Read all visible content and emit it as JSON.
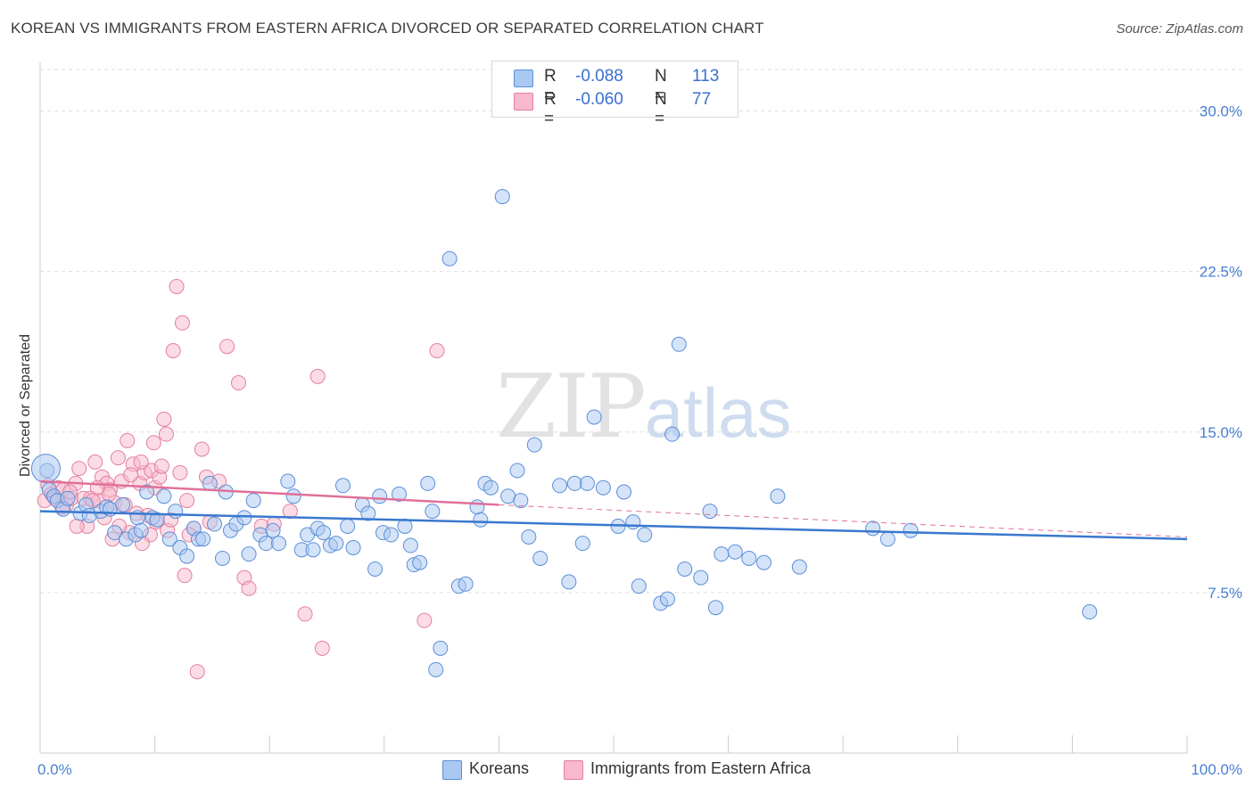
{
  "header": {
    "title": "KOREAN VS IMMIGRANTS FROM EASTERN AFRICA DIVORCED OR SEPARATED CORRELATION CHART",
    "source": "Source: ZipAtlas.com"
  },
  "watermark": {
    "zip": "ZIP",
    "atlas": "atlas"
  },
  "legend": {
    "rows": [
      {
        "r_label": "R =",
        "r_value": "-0.088",
        "n_label": "N =",
        "n_value": "113",
        "color": "#a9c8f2"
      },
      {
        "r_label": "R =",
        "r_value": "-0.060",
        "n_label": "N =",
        "n_value": "77",
        "color": "#f7b9cc"
      }
    ]
  },
  "bottom_legend": {
    "koreans": "Koreans",
    "eastern_africa": "Immigrants from Eastern Africa"
  },
  "colors": {
    "blue_fill": "#a9c8f2",
    "blue_stroke": "#5b8fd8",
    "blue_line": "#3a78cf",
    "pink_fill": "#f7b9cc",
    "pink_stroke": "#e47fa0",
    "pink_line": "#e0709a"
  },
  "chart_data": {
    "type": "scatter",
    "title": "KOREAN VS IMMIGRANTS FROM EASTERN AFRICA DIVORCED OR SEPARATED CORRELATION CHART",
    "ylabel": "Divorced or Separated",
    "xlabel": "",
    "xlim": [
      0,
      100
    ],
    "ylim": [
      0,
      31.5
    ],
    "x_tick_labels": [
      "0.0%",
      "100.0%"
    ],
    "y_ticks": [
      7.5,
      15.0,
      22.5,
      30.0
    ],
    "y_tick_labels": [
      "7.5%",
      "15.0%",
      "22.5%",
      "30.0%"
    ],
    "grid": "horizontal dashed",
    "series": [
      {
        "name": "Koreans",
        "R": -0.088,
        "N": 113,
        "trend": {
          "x": [
            0,
            100
          ],
          "y": [
            11.3,
            10.0
          ]
        },
        "points": [
          [
            0.6,
            13.2
          ],
          [
            0.8,
            12.3
          ],
          [
            1.2,
            12.0
          ],
          [
            1.5,
            11.8
          ],
          [
            2.0,
            11.4
          ],
          [
            2.4,
            11.9
          ],
          [
            3.5,
            11.2
          ],
          [
            4.0,
            11.6
          ],
          [
            4.3,
            11.1
          ],
          [
            5.3,
            11.3
          ],
          [
            5.8,
            11.5
          ],
          [
            6.1,
            11.4
          ],
          [
            6.5,
            10.3
          ],
          [
            7.2,
            11.6
          ],
          [
            7.5,
            10.0
          ],
          [
            8.3,
            10.2
          ],
          [
            8.5,
            11.0
          ],
          [
            8.8,
            10.4
          ],
          [
            9.3,
            12.2
          ],
          [
            9.8,
            11.0
          ],
          [
            10.2,
            10.9
          ],
          [
            10.8,
            12.0
          ],
          [
            11.3,
            10.0
          ],
          [
            11.8,
            11.3
          ],
          [
            12.2,
            9.6
          ],
          [
            12.8,
            9.2
          ],
          [
            13.4,
            10.5
          ],
          [
            13.8,
            10.0
          ],
          [
            14.2,
            10.0
          ],
          [
            14.8,
            12.6
          ],
          [
            15.2,
            10.7
          ],
          [
            15.9,
            9.1
          ],
          [
            16.2,
            12.2
          ],
          [
            16.6,
            10.4
          ],
          [
            17.1,
            10.7
          ],
          [
            17.8,
            11.0
          ],
          [
            18.2,
            9.3
          ],
          [
            18.6,
            11.8
          ],
          [
            19.2,
            10.2
          ],
          [
            19.7,
            9.8
          ],
          [
            20.3,
            10.4
          ],
          [
            20.8,
            9.8
          ],
          [
            21.6,
            12.7
          ],
          [
            22.1,
            12.0
          ],
          [
            22.8,
            9.5
          ],
          [
            23.3,
            10.2
          ],
          [
            23.8,
            9.5
          ],
          [
            24.2,
            10.5
          ],
          [
            24.7,
            10.3
          ],
          [
            25.3,
            9.7
          ],
          [
            25.8,
            9.8
          ],
          [
            26.4,
            12.5
          ],
          [
            26.8,
            10.6
          ],
          [
            27.3,
            9.6
          ],
          [
            28.1,
            11.6
          ],
          [
            28.6,
            11.2
          ],
          [
            29.2,
            8.6
          ],
          [
            29.6,
            12.0
          ],
          [
            29.9,
            10.3
          ],
          [
            30.6,
            10.2
          ],
          [
            31.3,
            12.1
          ],
          [
            31.8,
            10.6
          ],
          [
            32.3,
            9.7
          ],
          [
            32.6,
            8.8
          ],
          [
            33.1,
            8.9
          ],
          [
            33.8,
            12.6
          ],
          [
            34.2,
            11.3
          ],
          [
            34.5,
            3.9
          ],
          [
            34.9,
            4.9
          ],
          [
            35.7,
            23.1
          ],
          [
            36.5,
            7.8
          ],
          [
            37.1,
            7.9
          ],
          [
            38.1,
            11.5
          ],
          [
            38.4,
            10.9
          ],
          [
            38.8,
            12.6
          ],
          [
            39.3,
            12.4
          ],
          [
            40.3,
            26.0
          ],
          [
            40.8,
            12.0
          ],
          [
            41.6,
            13.2
          ],
          [
            41.9,
            11.8
          ],
          [
            42.6,
            10.1
          ],
          [
            43.1,
            14.4
          ],
          [
            43.6,
            9.1
          ],
          [
            45.3,
            12.5
          ],
          [
            46.1,
            8.0
          ],
          [
            46.6,
            12.6
          ],
          [
            47.3,
            9.8
          ],
          [
            47.7,
            12.6
          ],
          [
            48.3,
            15.7
          ],
          [
            49.1,
            12.4
          ],
          [
            50.4,
            10.6
          ],
          [
            50.9,
            12.2
          ],
          [
            51.7,
            10.8
          ],
          [
            52.2,
            7.8
          ],
          [
            52.7,
            10.2
          ],
          [
            54.1,
            7.0
          ],
          [
            54.7,
            7.2
          ],
          [
            55.1,
            14.9
          ],
          [
            55.7,
            19.1
          ],
          [
            56.2,
            8.6
          ],
          [
            57.6,
            8.2
          ],
          [
            58.4,
            11.3
          ],
          [
            58.9,
            6.8
          ],
          [
            59.4,
            9.3
          ],
          [
            60.6,
            9.4
          ],
          [
            61.8,
            9.1
          ],
          [
            63.1,
            8.9
          ],
          [
            64.3,
            12.0
          ],
          [
            66.2,
            8.7
          ],
          [
            72.6,
            10.5
          ],
          [
            73.9,
            10.0
          ],
          [
            75.9,
            10.4
          ],
          [
            91.5,
            6.6
          ]
        ]
      },
      {
        "name": "Immigrants from Eastern Africa",
        "R": -0.06,
        "N": 77,
        "trend": {
          "x": [
            0,
            40
          ],
          "y": [
            12.7,
            11.6
          ]
        },
        "trend_extension": {
          "x": [
            40,
            100
          ],
          "y": [
            11.6,
            10.1
          ]
        },
        "points": [
          [
            0.4,
            11.8
          ],
          [
            0.7,
            12.5
          ],
          [
            1.0,
            12.1
          ],
          [
            1.3,
            11.9
          ],
          [
            1.6,
            12.4
          ],
          [
            2.0,
            12.3
          ],
          [
            2.3,
            11.6
          ],
          [
            2.7,
            11.9
          ],
          [
            3.1,
            12.6
          ],
          [
            3.4,
            13.3
          ],
          [
            3.8,
            11.9
          ],
          [
            4.1,
            10.6
          ],
          [
            4.4,
            11.9
          ],
          [
            4.8,
            13.6
          ],
          [
            5.1,
            11.8
          ],
          [
            5.4,
            12.9
          ],
          [
            5.8,
            12.6
          ],
          [
            6.1,
            12.3
          ],
          [
            6.5,
            11.7
          ],
          [
            6.8,
            13.8
          ],
          [
            7.1,
            12.7
          ],
          [
            7.4,
            11.6
          ],
          [
            7.8,
            10.3
          ],
          [
            8.1,
            13.5
          ],
          [
            8.4,
            11.2
          ],
          [
            8.7,
            12.6
          ],
          [
            9.1,
            13.1
          ],
          [
            9.4,
            11.1
          ],
          [
            9.7,
            13.2
          ],
          [
            10.0,
            12.4
          ],
          [
            10.4,
            12.9
          ],
          [
            10.8,
            15.6
          ],
          [
            11.1,
            10.4
          ],
          [
            11.6,
            18.8
          ],
          [
            11.9,
            21.8
          ],
          [
            12.4,
            20.1
          ],
          [
            12.8,
            11.8
          ],
          [
            13.4,
            10.5
          ],
          [
            14.1,
            14.2
          ],
          [
            14.8,
            10.8
          ],
          [
            15.6,
            12.7
          ],
          [
            16.3,
            19.0
          ],
          [
            17.3,
            17.3
          ],
          [
            17.8,
            8.2
          ],
          [
            18.2,
            7.7
          ],
          [
            19.3,
            10.6
          ],
          [
            20.4,
            10.7
          ],
          [
            21.8,
            11.3
          ],
          [
            23.1,
            6.5
          ],
          [
            24.2,
            17.6
          ],
          [
            24.6,
            4.9
          ],
          [
            33.5,
            6.2
          ],
          [
            34.6,
            18.8
          ],
          [
            5.6,
            11.0
          ],
          [
            6.0,
            12.1
          ],
          [
            6.9,
            10.6
          ],
          [
            7.9,
            13.0
          ],
          [
            8.8,
            13.6
          ],
          [
            9.6,
            10.2
          ],
          [
            10.6,
            13.4
          ],
          [
            11.4,
            10.9
          ],
          [
            12.2,
            13.1
          ],
          [
            13.0,
            10.2
          ],
          [
            13.7,
            3.8
          ],
          [
            14.5,
            12.9
          ],
          [
            3.2,
            10.6
          ],
          [
            2.6,
            12.2
          ],
          [
            1.9,
            11.5
          ],
          [
            4.6,
            11.8
          ],
          [
            5.0,
            12.4
          ],
          [
            6.3,
            10.0
          ],
          [
            7.6,
            14.6
          ],
          [
            8.9,
            9.8
          ],
          [
            10.1,
            10.8
          ],
          [
            11.0,
            14.9
          ],
          [
            12.6,
            8.3
          ],
          [
            9.9,
            14.5
          ]
        ]
      }
    ]
  }
}
